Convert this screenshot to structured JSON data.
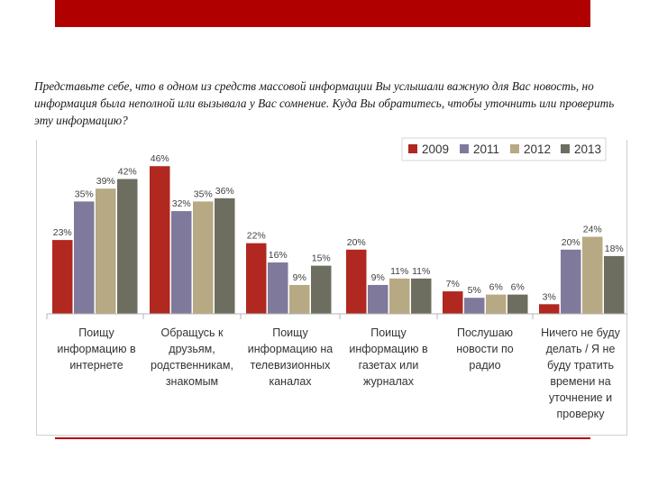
{
  "header_bar_color": "#b00000",
  "question": "Представьте себе, что в одном из средств массовой информации Вы услышали важную для Вас новость, но информация была неполной или вызывала у Вас сомнение. Куда Вы обратитесь, чтобы уточнить или проверить эту информацию?",
  "chart_data": {
    "type": "bar",
    "title": "",
    "xlabel": "",
    "ylabel": "",
    "ylim": [
      0,
      50
    ],
    "grid": false,
    "legend_position": "top-right",
    "categories": [
      "Поищу информацию в интернете",
      "Обращусь к друзьям, родственникам, знакомым",
      "Поищу информацию на телевизионных каналах",
      "Поищу информацию в газетах или журналах",
      "Послушаю новости по радио",
      "Ничего не буду делать / Я не буду тратить времени на уточнение и проверку"
    ],
    "category_lines": [
      [
        "Поищу",
        "информацию в",
        "интернете"
      ],
      [
        "Обращусь к",
        "друзьям,",
        "родственникам,",
        "знакомым"
      ],
      [
        "Поищу",
        "информацию на",
        "телевизионных",
        "каналах"
      ],
      [
        "Поищу",
        "информацию в",
        "газетах или",
        "журналах"
      ],
      [
        "Послушаю",
        "новости по",
        "радио"
      ],
      [
        "Ничего не буду",
        "делать / Я не",
        "буду тратить",
        "времени на",
        "уточнение и",
        "проверку"
      ]
    ],
    "series": [
      {
        "name": "2009",
        "color": "#b0281f",
        "values": [
          23,
          46,
          22,
          20,
          7,
          3
        ],
        "labels": [
          "23%",
          "46%",
          "22%",
          "20%",
          "7%",
          "3%"
        ]
      },
      {
        "name": "2011",
        "color": "#7f7a9c",
        "values": [
          35,
          32,
          16,
          9,
          5,
          20
        ],
        "labels": [
          "35%",
          "32%",
          "16%",
          "9%",
          "5%",
          "20%"
        ]
      },
      {
        "name": "2012",
        "color": "#b7a983",
        "values": [
          39,
          35,
          9,
          11,
          6,
          24
        ],
        "labels": [
          "39%",
          "35%",
          "9%",
          "11%",
          "6%",
          "24%"
        ]
      },
      {
        "name": "2013",
        "color": "#6e6e60",
        "values": [
          42,
          36,
          15,
          11,
          6,
          18
        ],
        "labels": [
          "42%",
          "36%",
          "15%",
          "11%",
          "6%",
          "18%"
        ]
      }
    ]
  }
}
